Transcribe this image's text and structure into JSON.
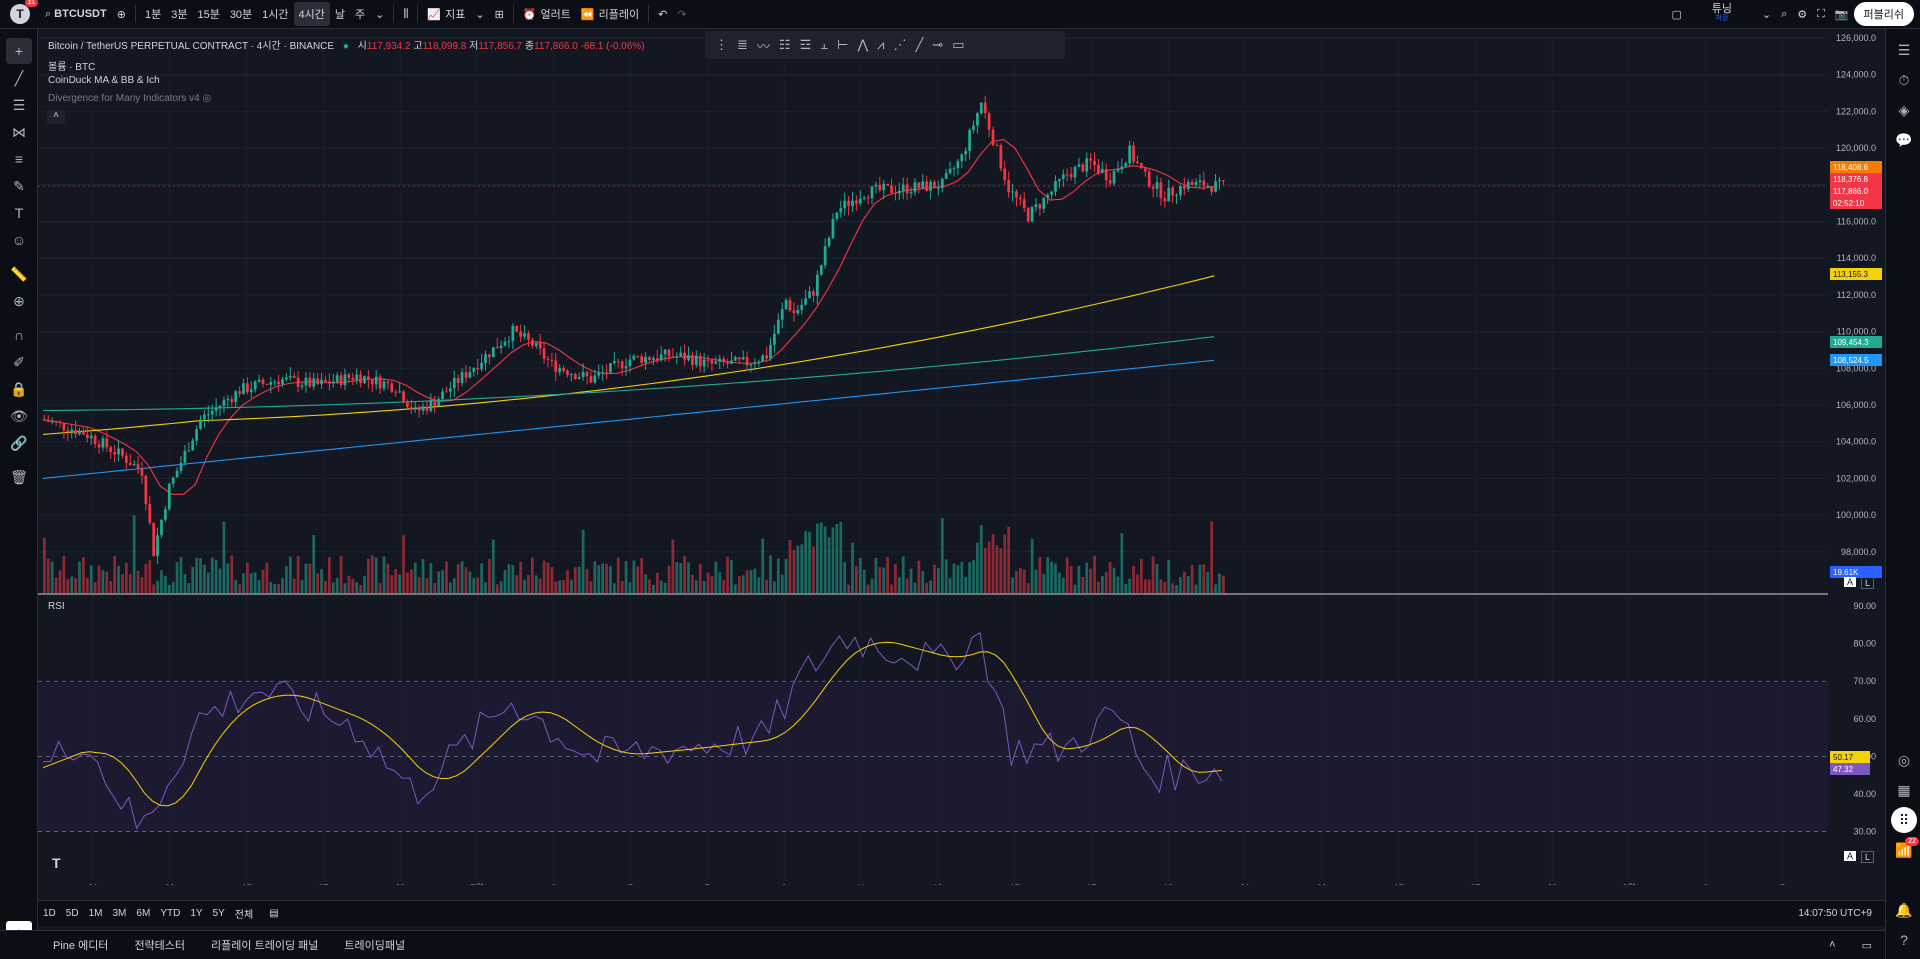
{
  "topbar": {
    "logo_letter": "T",
    "notif_count": "11",
    "symbol": "BTCUSDT",
    "intervals": [
      "1분",
      "3분",
      "15분",
      "30분",
      "1시간",
      "4시간",
      "날",
      "주"
    ],
    "active_interval": "4시간",
    "indicators_label": "지표",
    "alert_label": "얼러트",
    "replay_label": "리플레이",
    "tuning_label": "튜닝",
    "tuning_sub": "저장",
    "publish_label": "퍼블리쉬"
  },
  "legend": {
    "title": "Bitcoin / TetherUS PERPETUAL CONTRACT · 4시간 · BINANCE",
    "o_label": "시",
    "o": "117,934.2",
    "h_label": "고",
    "h": "118,099.8",
    "l_label": "저",
    "l": "117,856.7",
    "c_label": "종",
    "c": "117,866.0",
    "change": "-68.1 (-0.06%)",
    "volume": "볼륨 · BTC",
    "indicator1": "CoinDuck MA & BB & Ich",
    "indicator2": "Divergence for Many Indicators v4",
    "rsi": "RSI"
  },
  "price_axis": [
    "126,000.0",
    "124,000.0",
    "122,000.0",
    "120,000.0",
    "118,000.0",
    "116,000.0",
    "114,000.0",
    "112,000.0",
    "110,000.0",
    "108,000.0",
    "106,000.0",
    "104,000.0",
    "102,000.0",
    "100,000.0",
    "98,000.0"
  ],
  "price_labels": [
    {
      "text": "118,408.6",
      "color": "#f57c00"
    },
    {
      "text": "118,376.8",
      "color": "#f23645"
    },
    {
      "text": "117,866.0",
      "color": "#f23645"
    },
    {
      "text": "02:52:10",
      "color": "#f23645"
    },
    {
      "text": "113,155.3",
      "color": "#f5d10a"
    },
    {
      "text": "109,454.3",
      "color": "#22ab94"
    },
    {
      "text": "108,524.5",
      "color": "#2196f3"
    },
    {
      "text": "19.61K",
      "color": "#2962ff"
    }
  ],
  "rsi_axis": [
    "90.00",
    "80.00",
    "70.00",
    "60.00",
    "50.00",
    "40.00",
    "30.00"
  ],
  "rsi_labels": [
    {
      "text": "50.17",
      "color": "#f5d10a"
    },
    {
      "text": "47.32",
      "color": "#7e57c2"
    }
  ],
  "time_axis": [
    "21",
    "23",
    "25",
    "27",
    "29",
    "7월",
    "3",
    "5",
    "7",
    "9",
    "11",
    "13",
    "15",
    "17",
    "19",
    "21",
    "23",
    "25",
    "27",
    "29",
    "8월",
    "3",
    "5"
  ],
  "ranges": [
    "1D",
    "5D",
    "1M",
    "3M",
    "6M",
    "YTD",
    "1Y",
    "5Y",
    "전체"
  ],
  "clock": "14:07:50 UTC+9",
  "footer_tabs": [
    "Pine 에디터",
    "전략테스터",
    "리플레이 트레이딩 패널",
    "트레이딩패널"
  ],
  "alerts_count": "22",
  "colors": {
    "up": "#22ab94",
    "down": "#f23645",
    "bg": "#131722",
    "ma_red": "#f23645",
    "ma_yellow": "#f5d10a",
    "ma_green": "#22ab94",
    "ma_blue": "#2196f3",
    "rsi_line": "#7e57c2"
  }
}
